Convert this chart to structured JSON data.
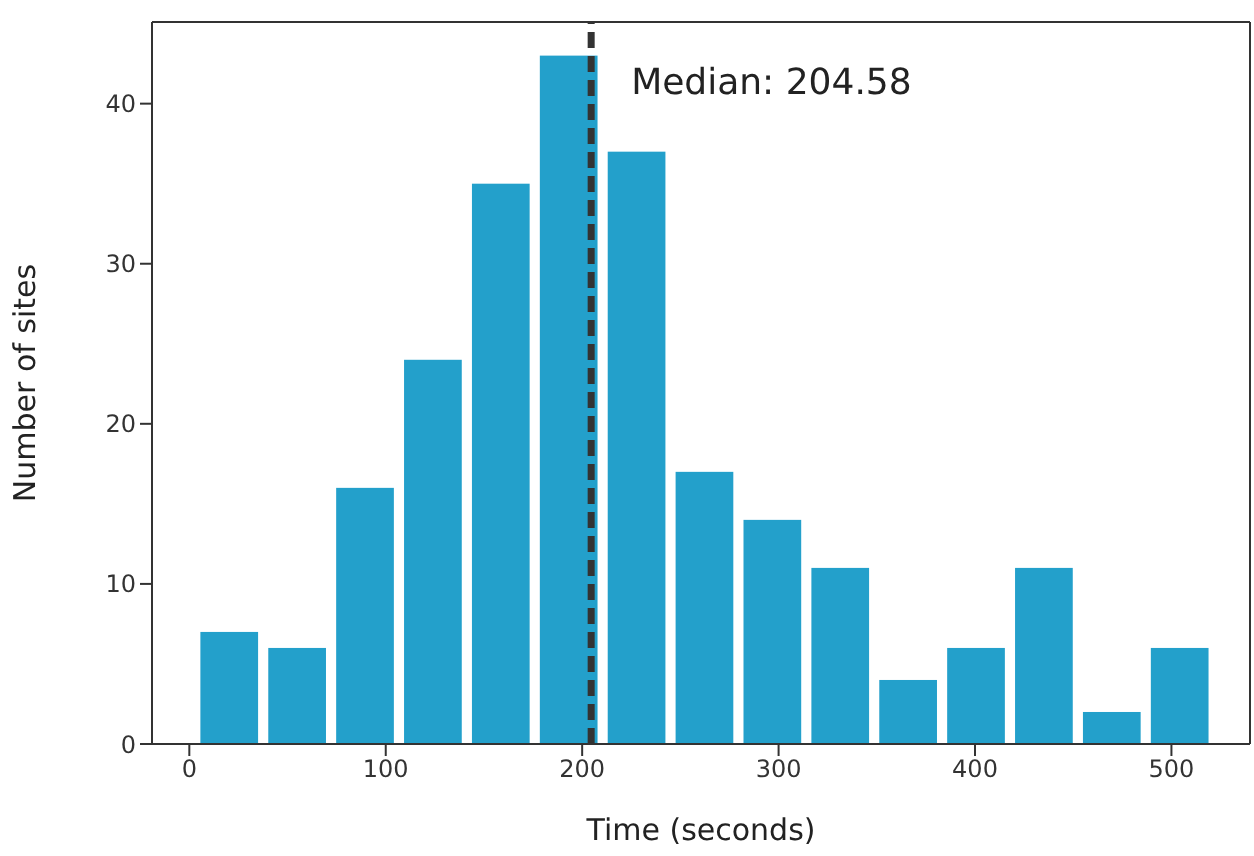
{
  "chart_data": {
    "type": "histogram",
    "xlabel": "Time (seconds)",
    "ylabel": "Number of sites",
    "bins": [
      3,
      37.5,
      72,
      106.5,
      141,
      175.5,
      210,
      244.5,
      279,
      313.5,
      348,
      382.5,
      417,
      451.5,
      486,
      520.5
    ],
    "values": [
      7,
      6,
      16,
      24,
      35,
      43,
      37,
      17,
      14,
      11,
      4,
      6,
      11,
      2,
      6
    ],
    "color": "#23a0cb",
    "xlim": [
      -19,
      540
    ],
    "xticks": [
      0,
      100,
      200,
      300,
      400,
      500
    ],
    "ylim": [
      0,
      45.1
    ],
    "yticks": [
      0,
      10,
      20,
      30,
      40
    ],
    "ref_lines": [
      {
        "axis": "x",
        "value": 204.58,
        "label": "Median: 204.58",
        "color": "#333333",
        "line_style": "dashed"
      }
    ]
  }
}
